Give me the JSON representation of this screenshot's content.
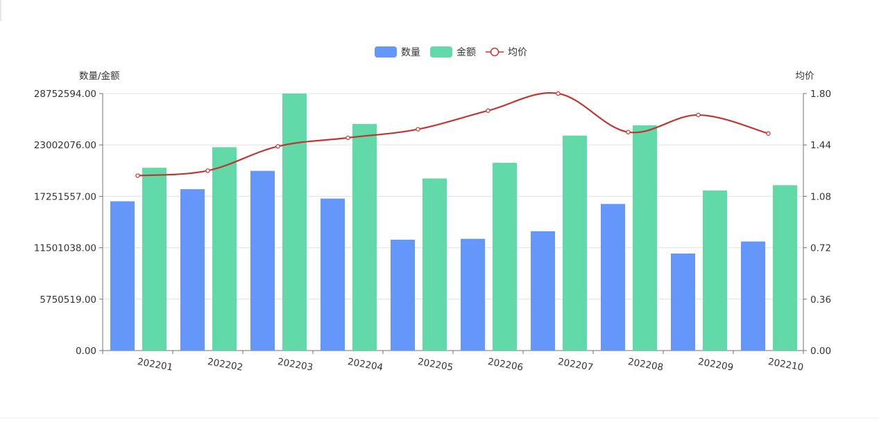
{
  "chart_data": {
    "type": "bar",
    "categories": [
      "202201",
      "202202",
      "202203",
      "202204",
      "202205",
      "202206",
      "202207",
      "202208",
      "202209",
      "202210"
    ],
    "series": [
      {
        "name": "数量",
        "type": "bar",
        "axis": "left",
        "color": "#6596fa",
        "values": [
          16700000,
          18050000,
          20100000,
          17000000,
          12400000,
          12500000,
          13350000,
          16400000,
          10850000,
          12200000
        ]
      },
      {
        "name": "金额",
        "type": "bar",
        "axis": "left",
        "color": "#61d9a8",
        "values": [
          20450000,
          22750000,
          28752594,
          25350000,
          19250000,
          21000000,
          24050000,
          25200000,
          17900000,
          18500000
        ]
      },
      {
        "name": "均价",
        "type": "line",
        "axis": "right",
        "color": "#c23531",
        "smooth": true,
        "values": [
          1.225,
          1.26,
          1.43,
          1.49,
          1.55,
          1.68,
          1.8,
          1.53,
          1.65,
          1.52
        ]
      }
    ],
    "left_axis": {
      "name": "数量/金额",
      "min": 0,
      "max": 28752594,
      "ticks": [
        "0.00",
        "5750519.00",
        "11501038.00",
        "17251557.00",
        "23002076.00",
        "28752594.00"
      ]
    },
    "right_axis": {
      "name": "均价",
      "min": 0,
      "max": 1.8,
      "ticks": [
        "0.00",
        "0.36",
        "0.72",
        "1.08",
        "1.44",
        "1.80"
      ]
    },
    "legend_position": "top-center",
    "grid": true
  }
}
